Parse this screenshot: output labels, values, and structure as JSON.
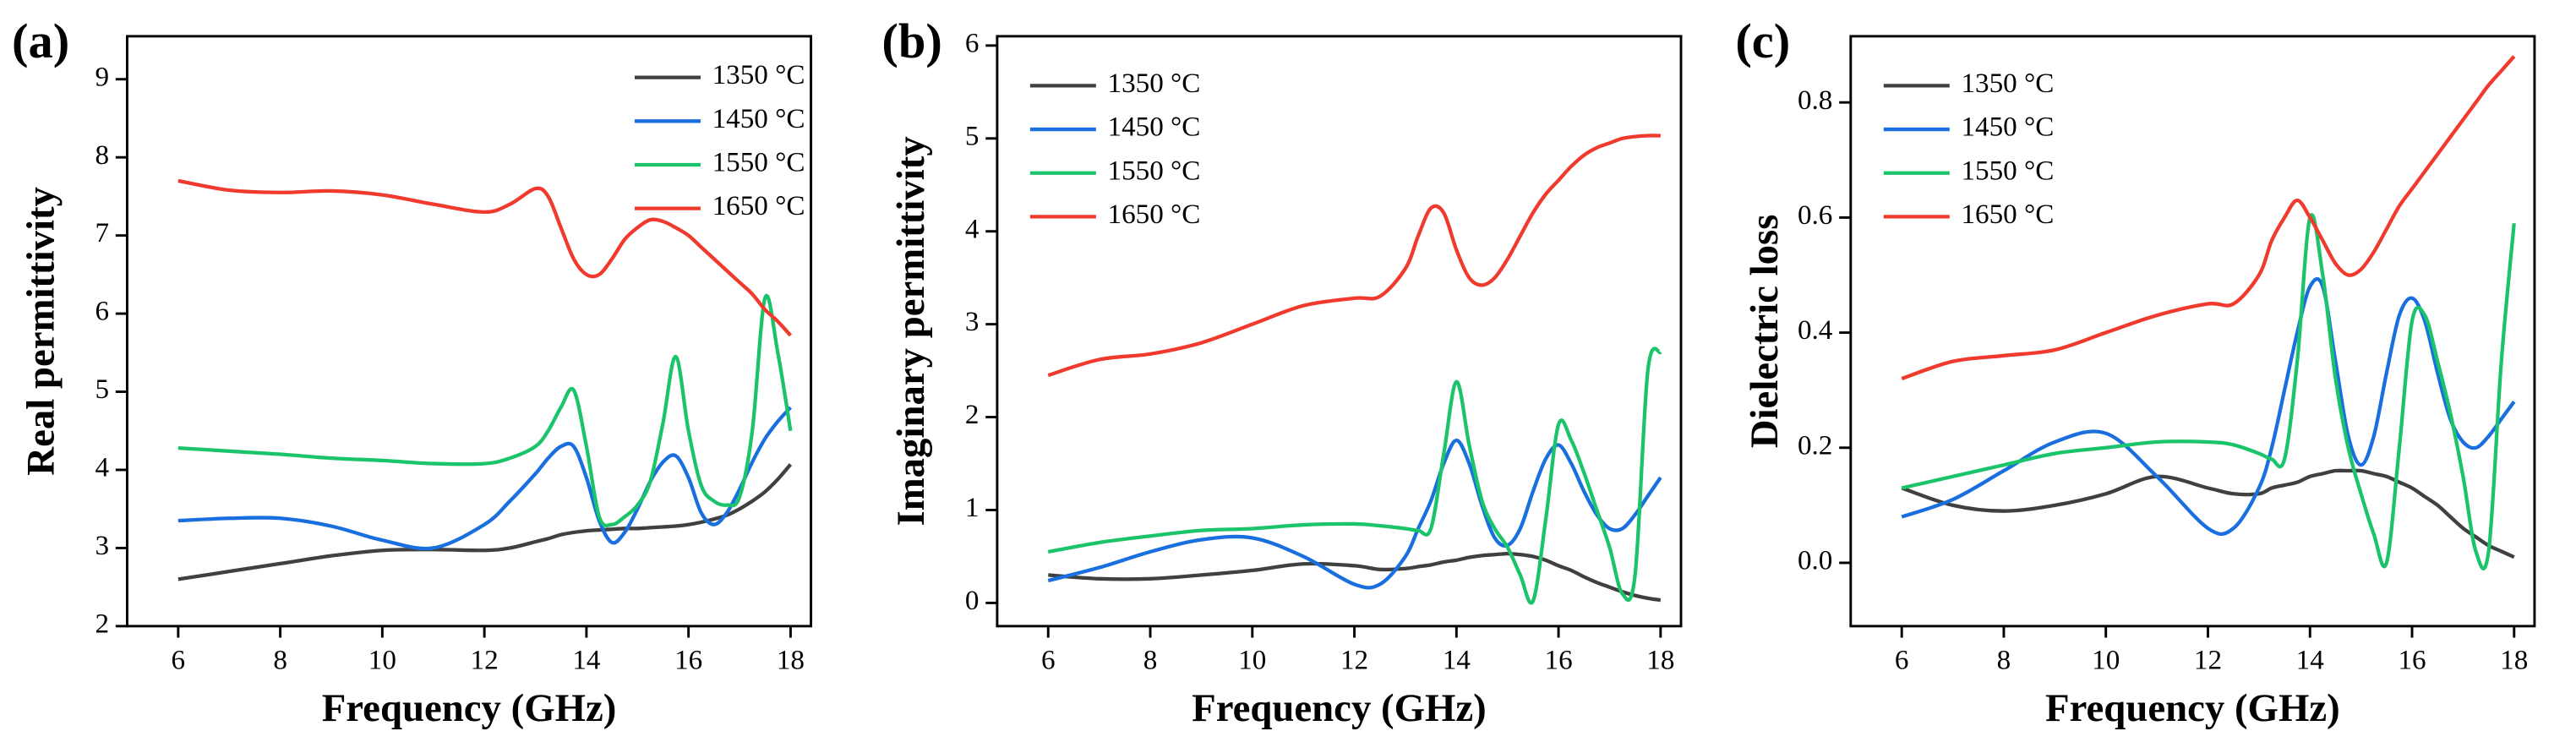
{
  "chart_data": [
    {
      "type": "line",
      "panel_label": "(a)",
      "xlabel": "Frequency (GHz)",
      "ylabel": "Real permittivity",
      "legend": "upper right",
      "x": [
        6,
        7,
        8,
        9,
        10,
        11,
        12,
        12.5,
        13,
        13.25,
        13.5,
        13.75,
        14,
        14.25,
        14.5,
        14.75,
        15,
        15.25,
        15.5,
        15.75,
        16,
        16.25,
        16.5,
        16.75,
        17,
        17.25,
        17.5,
        17.75,
        18
      ],
      "xlim": [
        5,
        18.4
      ],
      "xticks": [
        6,
        8,
        10,
        12,
        14,
        16,
        18
      ],
      "ylim": [
        2,
        9.55
      ],
      "yticks": [
        2,
        3,
        4,
        5,
        6,
        7,
        8,
        9
      ],
      "series": [
        {
          "name": "1350 °C",
          "color": "#404040",
          "values": [
            2.6,
            2.7,
            2.8,
            2.9,
            2.97,
            2.98,
            2.97,
            3.0,
            3.08,
            3.12,
            3.17,
            3.2,
            3.22,
            3.23,
            3.24,
            3.25,
            3.25,
            3.26,
            3.27,
            3.28,
            3.3,
            3.33,
            3.37,
            3.42,
            3.5,
            3.6,
            3.72,
            3.88,
            4.07
          ]
        },
        {
          "name": "1450 °C",
          "color": "#1a6fdf",
          "values": [
            3.35,
            3.38,
            3.38,
            3.28,
            3.1,
            3.0,
            3.3,
            3.6,
            3.95,
            4.15,
            4.3,
            4.3,
            3.9,
            3.35,
            3.07,
            3.2,
            3.5,
            3.85,
            4.1,
            4.18,
            3.9,
            3.45,
            3.3,
            3.45,
            3.75,
            4.1,
            4.4,
            4.62,
            4.8
          ]
        },
        {
          "name": "1550 °C",
          "color": "#1bc46a",
          "values": [
            4.28,
            4.24,
            4.2,
            4.15,
            4.12,
            4.08,
            4.08,
            4.15,
            4.3,
            4.5,
            4.8,
            5.02,
            4.3,
            3.4,
            3.3,
            3.4,
            3.55,
            3.85,
            4.6,
            5.45,
            4.5,
            3.8,
            3.6,
            3.55,
            3.65,
            4.5,
            6.2,
            5.5,
            4.5
          ]
        },
        {
          "name": "1650 °C",
          "color": "#f03a2e",
          "values": [
            7.7,
            7.58,
            7.55,
            7.57,
            7.52,
            7.4,
            7.3,
            7.4,
            7.6,
            7.5,
            7.1,
            6.7,
            6.5,
            6.5,
            6.7,
            6.95,
            7.1,
            7.2,
            7.18,
            7.1,
            7.0,
            6.85,
            6.7,
            6.55,
            6.4,
            6.25,
            6.05,
            5.9,
            5.72
          ]
        }
      ]
    },
    {
      "type": "line",
      "panel_label": "(b)",
      "xlabel": "Frequency (GHz)",
      "ylabel": "Imaginary permittivity",
      "legend": "upper left",
      "x": [
        6,
        7,
        8,
        9,
        10,
        11,
        12,
        12.5,
        13,
        13.25,
        13.5,
        13.75,
        14,
        14.25,
        14.5,
        14.75,
        15,
        15.25,
        15.5,
        15.75,
        16,
        16.25,
        16.5,
        16.75,
        17,
        17.25,
        17.5,
        17.75,
        18
      ],
      "xlim": [
        5,
        18.4
      ],
      "xticks": [
        6,
        8,
        10,
        12,
        14,
        16,
        18
      ],
      "ylim": [
        -0.25,
        6.1
      ],
      "yticks": [
        0,
        1,
        2,
        3,
        4,
        5,
        6
      ],
      "series": [
        {
          "name": "1350 °C",
          "color": "#404040",
          "values": [
            0.3,
            0.26,
            0.26,
            0.3,
            0.35,
            0.42,
            0.4,
            0.36,
            0.37,
            0.39,
            0.41,
            0.44,
            0.46,
            0.49,
            0.51,
            0.52,
            0.53,
            0.52,
            0.5,
            0.46,
            0.4,
            0.35,
            0.28,
            0.22,
            0.17,
            0.12,
            0.08,
            0.05,
            0.03
          ]
        },
        {
          "name": "1450 °C",
          "color": "#1a6fdf",
          "values": [
            0.24,
            0.38,
            0.55,
            0.68,
            0.7,
            0.5,
            0.2,
            0.2,
            0.5,
            0.8,
            1.1,
            1.5,
            1.75,
            1.5,
            1.05,
            0.7,
            0.62,
            0.8,
            1.2,
            1.55,
            1.7,
            1.5,
            1.2,
            0.95,
            0.8,
            0.8,
            0.95,
            1.15,
            1.35
          ]
        },
        {
          "name": "1550 °C",
          "color": "#1bc46a",
          "values": [
            0.55,
            0.65,
            0.72,
            0.78,
            0.8,
            0.84,
            0.85,
            0.83,
            0.8,
            0.78,
            0.8,
            1.6,
            2.38,
            1.7,
            1.1,
            0.8,
            0.6,
            0.3,
            0.02,
            0.9,
            1.92,
            1.75,
            1.4,
            1.0,
            0.6,
            0.1,
            0.3,
            2.5,
            2.7
          ]
        },
        {
          "name": "1650 °C",
          "color": "#f03a2e",
          "values": [
            2.45,
            2.62,
            2.68,
            2.8,
            3.0,
            3.2,
            3.28,
            3.3,
            3.6,
            3.95,
            4.25,
            4.2,
            3.8,
            3.5,
            3.42,
            3.5,
            3.7,
            3.95,
            4.2,
            4.4,
            4.55,
            4.7,
            4.82,
            4.9,
            4.95,
            5.0,
            5.02,
            5.03,
            5.03
          ]
        }
      ]
    },
    {
      "type": "line",
      "panel_label": "(c)",
      "xlabel": "Frequency (GHz)",
      "ylabel": "Dielectric loss",
      "legend": "upper left",
      "x": [
        6,
        7,
        8,
        9,
        10,
        11,
        12,
        12.5,
        13,
        13.25,
        13.5,
        13.75,
        14,
        14.25,
        14.5,
        14.75,
        15,
        15.25,
        15.5,
        15.75,
        16,
        16.25,
        16.5,
        16.75,
        17,
        17.25,
        17.5,
        17.75,
        18
      ],
      "xlim": [
        5,
        18.4
      ],
      "xticks": [
        6,
        8,
        10,
        12,
        14,
        16,
        18
      ],
      "ylim": [
        -0.11,
        0.915
      ],
      "yticks": [
        {
          "value": 0,
          "label": "0.0"
        },
        0.2,
        0.4,
        0.6,
        0.8
      ],
      "series": [
        {
          "name": "1350 °C",
          "color": "#404040",
          "values": [
            0.13,
            0.1,
            0.09,
            0.1,
            0.12,
            0.15,
            0.13,
            0.12,
            0.12,
            0.13,
            0.135,
            0.14,
            0.15,
            0.155,
            0.16,
            0.16,
            0.16,
            0.155,
            0.15,
            0.14,
            0.13,
            0.115,
            0.1,
            0.08,
            0.06,
            0.045,
            0.03,
            0.02,
            0.01
          ]
        },
        {
          "name": "1450 °C",
          "color": "#1a6fdf",
          "values": [
            0.08,
            0.11,
            0.16,
            0.21,
            0.225,
            0.15,
            0.06,
            0.06,
            0.13,
            0.2,
            0.3,
            0.4,
            0.48,
            0.48,
            0.35,
            0.22,
            0.17,
            0.22,
            0.33,
            0.43,
            0.46,
            0.42,
            0.33,
            0.25,
            0.21,
            0.2,
            0.22,
            0.25,
            0.28
          ]
        },
        {
          "name": "1550 °C",
          "color": "#1bc46a",
          "values": [
            0.13,
            0.15,
            0.17,
            0.19,
            0.2,
            0.21,
            0.21,
            0.205,
            0.19,
            0.18,
            0.18,
            0.35,
            0.6,
            0.5,
            0.32,
            0.2,
            0.12,
            0.05,
            0.0,
            0.2,
            0.42,
            0.43,
            0.35,
            0.26,
            0.15,
            0.02,
            0.02,
            0.35,
            0.59
          ]
        },
        {
          "name": "1650 °C",
          "color": "#f03a2e",
          "values": [
            0.32,
            0.35,
            0.36,
            0.37,
            0.4,
            0.43,
            0.45,
            0.45,
            0.5,
            0.56,
            0.6,
            0.63,
            0.6,
            0.56,
            0.52,
            0.5,
            0.51,
            0.54,
            0.58,
            0.62,
            0.65,
            0.68,
            0.71,
            0.74,
            0.77,
            0.8,
            0.83,
            0.855,
            0.88
          ]
        }
      ]
    }
  ]
}
